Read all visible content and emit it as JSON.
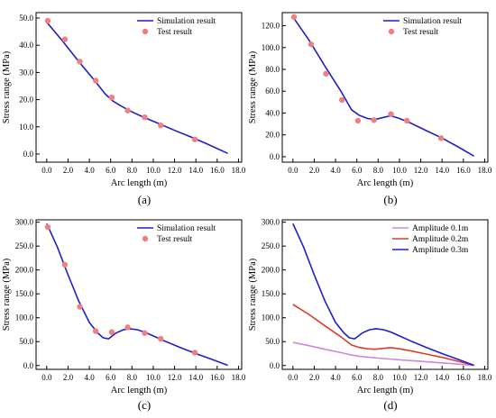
{
  "chart_data": [
    {
      "type": "line",
      "panel_label": "(a)",
      "xlabel": "Arc length (m)",
      "ylabel": "Stress range (MPa)",
      "xlim": [
        -1.0,
        18.3
      ],
      "ylim": [
        -3,
        52
      ],
      "xticks": [
        "0.0",
        "2.0",
        "4.0",
        "6.0",
        "8.0",
        "10.0",
        "12.0",
        "14.0",
        "16.0",
        "18.0"
      ],
      "xtick_values": [
        0,
        2,
        4,
        6,
        8,
        10,
        12,
        14,
        16,
        18
      ],
      "yticks": [
        "0.0",
        "10.0",
        "20.0",
        "30.0",
        "40.0",
        "50.0"
      ],
      "ytick_values": [
        0,
        10,
        20,
        30,
        40,
        50
      ],
      "legend_position": "top-right",
      "series": [
        {
          "name": "Simulation result",
          "kind": "line",
          "color": "#1f1fcc",
          "x": [
            0,
            1.5,
            3.0,
            4.5,
            5.5,
            6.2,
            7.0,
            8.0,
            9.0,
            10.5,
            12.0,
            13.5,
            15.0,
            17.0
          ],
          "y": [
            48.5,
            41.5,
            34.0,
            27.0,
            22.0,
            19.5,
            17.6,
            15.5,
            13.7,
            11.2,
            8.7,
            6.3,
            3.8,
            0.2
          ]
        },
        {
          "name": "Test result",
          "kind": "scatter",
          "color": "#f08080",
          "x": [
            0.1,
            1.7,
            3.1,
            4.6,
            6.1,
            7.6,
            9.2,
            10.7,
            13.9
          ],
          "y": [
            49.0,
            42.2,
            34.0,
            27.0,
            20.8,
            16.0,
            13.5,
            10.5,
            5.4
          ]
        }
      ]
    },
    {
      "type": "line",
      "panel_label": "(b)",
      "xlabel": "Arc length (m)",
      "ylabel": "Stress range (MPa)",
      "xlim": [
        -1.0,
        18.3
      ],
      "ylim": [
        -5,
        132
      ],
      "xticks": [
        "0.0",
        "2.0",
        "4.0",
        "6.0",
        "8.0",
        "10.0",
        "12.0",
        "14.0",
        "16.0",
        "18.0"
      ],
      "xtick_values": [
        0,
        2,
        4,
        6,
        8,
        10,
        12,
        14,
        16,
        18
      ],
      "yticks": [
        "0.0",
        "20.0",
        "40.0",
        "60.0",
        "80.0",
        "100.0",
        "120.0"
      ],
      "ytick_values": [
        0,
        20,
        40,
        60,
        80,
        100,
        120
      ],
      "legend_position": "top-right",
      "series": [
        {
          "name": "Simulation result",
          "kind": "line",
          "color": "#1f1fcc",
          "x": [
            0,
            1.5,
            3.0,
            4.5,
            5.5,
            6.2,
            7.0,
            7.7,
            8.5,
            9.2,
            10.0,
            11.0,
            12.5,
            14.0,
            15.5,
            17.0
          ],
          "y": [
            128,
            107,
            83,
            60,
            43,
            38,
            35,
            34,
            36,
            37.5,
            35,
            31,
            24,
            17,
            9,
            0.5
          ]
        },
        {
          "name": "Test result",
          "kind": "scatter",
          "color": "#f08080",
          "x": [
            0.1,
            1.7,
            3.1,
            4.6,
            6.1,
            7.6,
            9.2,
            10.7,
            13.9
          ],
          "y": [
            128,
            103,
            76,
            52,
            33,
            33.5,
            39,
            33,
            17
          ]
        }
      ]
    },
    {
      "type": "line",
      "panel_label": "(c)",
      "xlabel": "Arc length (m)",
      "ylabel": "Stress range (MPa)",
      "xlim": [
        -1.0,
        18.3
      ],
      "ylim": [
        -8,
        305
      ],
      "xticks": [
        "0.0",
        "2.0",
        "4.0",
        "6.0",
        "8.0",
        "10.0",
        "12.0",
        "14.0",
        "16.0",
        "18.0"
      ],
      "xtick_values": [
        0,
        2,
        4,
        6,
        8,
        10,
        12,
        14,
        16,
        18
      ],
      "yticks": [
        "0.0",
        "50.0",
        "100.0",
        "150.0",
        "200.0",
        "250.0",
        "300.0"
      ],
      "ytick_values": [
        0,
        50,
        100,
        150,
        200,
        250,
        300
      ],
      "legend_position": "top-right",
      "series": [
        {
          "name": "Simulation result",
          "kind": "line",
          "color": "#1f1fcc",
          "x": [
            0,
            1.0,
            2.0,
            3.0,
            4.0,
            4.8,
            5.3,
            5.8,
            6.5,
            7.2,
            7.8,
            8.5,
            9.2,
            10.0,
            11.0,
            12.5,
            14.0,
            15.5,
            17.0
          ],
          "y": [
            297,
            248,
            190,
            135,
            90,
            68,
            58,
            56,
            68,
            75,
            77,
            75,
            70,
            62,
            52,
            38,
            25,
            13,
            0.5
          ]
        },
        {
          "name": "Test result",
          "kind": "scatter",
          "color": "#f08080",
          "x": [
            0.1,
            1.7,
            3.1,
            4.6,
            6.1,
            7.6,
            9.2,
            10.7,
            13.9
          ],
          "y": [
            290,
            211,
            123,
            72,
            70,
            80,
            68,
            56,
            27
          ]
        }
      ]
    },
    {
      "type": "line",
      "panel_label": "(d)",
      "xlabel": "Arc length (m)",
      "ylabel": "Stress range (MPa)",
      "xlim": [
        -1.0,
        18.3
      ],
      "ylim": [
        -8,
        305
      ],
      "xticks": [
        "0.0",
        "2.0",
        "4.0",
        "6.0",
        "8.0",
        "10.0",
        "12.0",
        "14.0",
        "16.0",
        "18.0"
      ],
      "xtick_values": [
        0,
        2,
        4,
        6,
        8,
        10,
        12,
        14,
        16,
        18
      ],
      "yticks": [
        "0.0",
        "50.0",
        "100.0",
        "150.0",
        "200.0",
        "250.0",
        "300.0"
      ],
      "ytick_values": [
        0,
        50,
        100,
        150,
        200,
        250,
        300
      ],
      "legend_position": "top-right",
      "series": [
        {
          "name": "Amplitude 0.1m",
          "kind": "line",
          "color": "#cc88dd",
          "x": [
            0,
            1.5,
            3.0,
            4.5,
            5.5,
            6.2,
            7.0,
            8.0,
            9.0,
            10.5,
            12.0,
            13.5,
            15.0,
            17.0
          ],
          "y": [
            48.5,
            41.5,
            34.0,
            27.0,
            22.0,
            19.5,
            17.6,
            15.5,
            13.7,
            11.2,
            8.7,
            6.3,
            3.8,
            0.2
          ]
        },
        {
          "name": "Amplitude 0.2m",
          "kind": "line",
          "color": "#e03a2a",
          "x": [
            0,
            1.5,
            3.0,
            4.5,
            5.5,
            6.2,
            7.0,
            7.7,
            8.5,
            9.2,
            10.0,
            11.0,
            12.5,
            14.0,
            15.5,
            17.0
          ],
          "y": [
            128,
            107,
            83,
            60,
            43,
            38,
            35,
            34,
            36,
            37.5,
            35,
            31,
            24,
            17,
            9,
            0.5
          ]
        },
        {
          "name": "Amplitude 0.3m",
          "kind": "line",
          "color": "#1f1fcc",
          "x": [
            0,
            1.0,
            2.0,
            3.0,
            4.0,
            4.8,
            5.3,
            5.8,
            6.5,
            7.2,
            7.8,
            8.5,
            9.2,
            10.0,
            11.0,
            12.5,
            14.0,
            15.5,
            17.0
          ],
          "y": [
            297,
            248,
            190,
            135,
            90,
            68,
            58,
            56,
            68,
            75,
            77,
            75,
            70,
            62,
            52,
            38,
            25,
            13,
            0.5
          ]
        }
      ]
    }
  ]
}
